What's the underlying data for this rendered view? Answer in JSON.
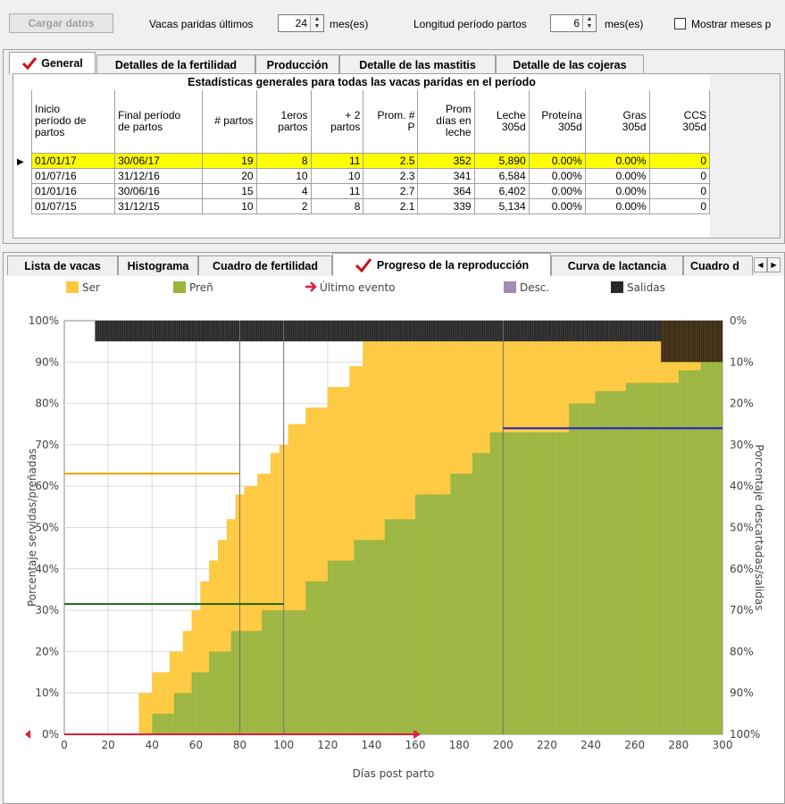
{
  "toolbar": {
    "load_button": "Cargar datos",
    "calved_label": "Vacas paridas últimos",
    "calved_value": "24",
    "calved_unit": "mes(es)",
    "period_label": "Longitud período partos",
    "period_value": "6",
    "period_unit": "mes(es)",
    "show_months_label": "Mostrar meses p"
  },
  "top_tabs": [
    "General",
    "Detalles de la fertilidad",
    "Producción",
    "Detalle de las mastitis",
    "Detalle de las cojeras"
  ],
  "table": {
    "title": "Estadísticas generales para todas las vacas paridas en el período",
    "headers": [
      [
        "Inicio",
        "período de",
        "partos"
      ],
      [
        "Final período",
        "de partos"
      ],
      [
        "# partos"
      ],
      [
        "1eros",
        "partos"
      ],
      [
        "+ 2",
        "partos"
      ],
      [
        "Prom. #",
        "P"
      ],
      [
        "Prom",
        "días en",
        "leche"
      ],
      [
        "Leche",
        "305d"
      ],
      [
        "Proteína",
        "305d"
      ],
      [
        "Gras",
        "305d"
      ],
      [
        "CCS",
        "305d"
      ]
    ],
    "rows": [
      [
        "01/01/17",
        "30/06/17",
        "19",
        "8",
        "11",
        "2.5",
        "352",
        "5,890",
        "0.00%",
        "0.00%",
        "0"
      ],
      [
        "01/07/16",
        "31/12/16",
        "20",
        "10",
        "10",
        "2.3",
        "341",
        "6,584",
        "0.00%",
        "0.00%",
        "0"
      ],
      [
        "01/01/16",
        "30/06/16",
        "15",
        "4",
        "11",
        "2.7",
        "364",
        "6,402",
        "0.00%",
        "0.00%",
        "0"
      ],
      [
        "01/07/15",
        "31/12/15",
        "10",
        "2",
        "8",
        "2.1",
        "339",
        "5,134",
        "0.00%",
        "0.00%",
        "0"
      ]
    ]
  },
  "bottom_tabs": [
    "Lista de vacas",
    "Histograma",
    "Cuadro de fertilidad",
    "Progreso de la reproducción",
    "Curva de lactancia",
    "Cuadro d"
  ],
  "chart_data": {
    "type": "area",
    "legend": [
      "Ser",
      "Preñ",
      "Último evento",
      "Desc.",
      "Salidas"
    ],
    "colors": {
      "served": "#ffc83c",
      "pregnant": "#9ab43c",
      "last_event": "#e01e3c",
      "culled": "#a08cb4",
      "exits": "#282828",
      "exits_dark": "#3c2a10",
      "line_orange": "#f0a000",
      "line_green": "#1e6414",
      "line_blue": "#1e1ec8"
    },
    "xlabel": "Días post parto",
    "ylabel_left": "Porcentaje servidas/preñadas",
    "ylabel_right": "Porcentaje descartadas/salidas",
    "x_ticks": [
      "0",
      "20",
      "40",
      "60",
      "80",
      "100",
      "120",
      "140",
      "160",
      "180",
      "200",
      "220",
      "240",
      "260",
      "280",
      "300"
    ],
    "y_ticks_left": [
      "0%",
      "10%",
      "20%",
      "30%",
      "40%",
      "50%",
      "60%",
      "70%",
      "80%",
      "90%",
      "100%"
    ],
    "y_ticks_right": [
      "100%",
      "90%",
      "80%",
      "70%",
      "60%",
      "50%",
      "40%",
      "30%",
      "20%",
      "10%",
      "0%"
    ],
    "xlim": [
      0,
      300
    ],
    "ylim": [
      0,
      100
    ],
    "served_steps": [
      [
        34,
        10
      ],
      [
        40,
        15
      ],
      [
        48,
        20
      ],
      [
        54,
        25
      ],
      [
        58,
        30
      ],
      [
        62,
        37
      ],
      [
        66,
        42
      ],
      [
        70,
        47
      ],
      [
        74,
        52
      ],
      [
        78,
        58
      ],
      [
        82,
        60
      ],
      [
        88,
        63
      ],
      [
        94,
        68
      ],
      [
        98,
        70
      ],
      [
        102,
        75
      ],
      [
        110,
        79
      ],
      [
        120,
        84
      ],
      [
        130,
        89
      ],
      [
        136,
        95
      ],
      [
        196,
        100
      ],
      [
        280,
        100
      ]
    ],
    "pregnant_steps": [
      [
        34,
        0
      ],
      [
        40,
        5
      ],
      [
        50,
        10
      ],
      [
        58,
        15
      ],
      [
        66,
        20
      ],
      [
        76,
        25
      ],
      [
        90,
        30
      ],
      [
        110,
        37
      ],
      [
        120,
        42
      ],
      [
        132,
        47
      ],
      [
        146,
        52
      ],
      [
        160,
        58
      ],
      [
        176,
        63
      ],
      [
        186,
        68
      ],
      [
        194,
        73
      ],
      [
        230,
        80
      ],
      [
        242,
        83
      ],
      [
        256,
        85
      ],
      [
        280,
        88
      ],
      [
        290,
        90
      ],
      [
        300,
        90
      ]
    ],
    "exits_from": 14,
    "exits_level": 5,
    "exits_dark_from": 272,
    "exits_dark_level": 10,
    "ref_lines": [
      {
        "color": "orange",
        "x0": 0,
        "x1": 80,
        "y": 63
      },
      {
        "color": "green",
        "x0": 0,
        "x1": 100,
        "y": 31.5
      },
      {
        "color": "blue",
        "x0": 200,
        "x1": 300,
        "y": 74
      }
    ],
    "last_event_x": 160,
    "vlines": [
      80,
      100,
      200
    ]
  }
}
